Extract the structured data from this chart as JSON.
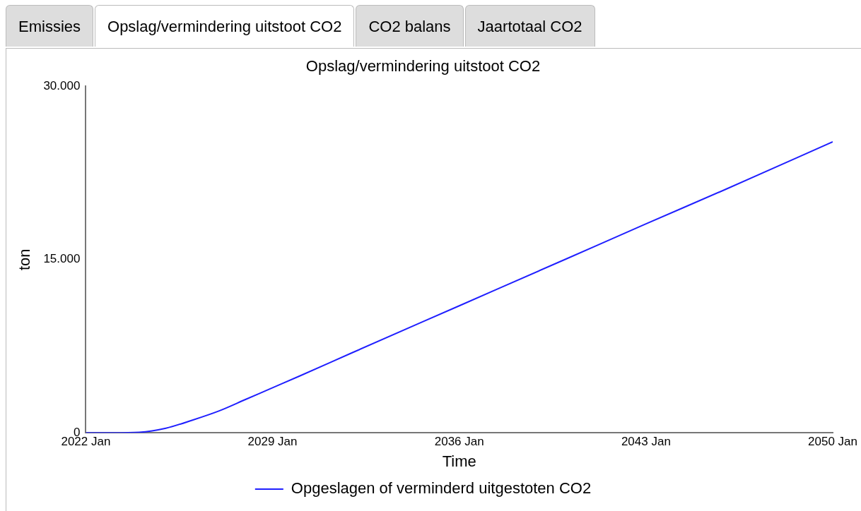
{
  "chart_data": {
    "type": "line",
    "title": "Opslag/vermindering uitstoot CO2",
    "xlabel": "Time",
    "ylabel": "ton",
    "annotations": [
      "Emissies",
      "Opslag/vermindering uitstoot CO2",
      "CO2 balans",
      "Jaartotaal CO2"
    ],
    "x": [
      "2022-01",
      "2023-01",
      "2024-01",
      "2025-01",
      "2026-01",
      "2027-01",
      "2028-01",
      "2029-01",
      "2030-01",
      "2032-01",
      "2036-01",
      "2040-01",
      "2043-01",
      "2046-01",
      "2050-01"
    ],
    "series": [
      {
        "name": "Opgeslagen of verminderd uitgestoten CO2",
        "color": "#1f1fff",
        "values": [
          0,
          0,
          50,
          400,
          1100,
          1900,
          2900,
          3900,
          4900,
          6950,
          11000,
          15050,
          18100,
          21100,
          25200
        ]
      }
    ],
    "xlim": [
      "2022-01",
      "2050-01"
    ],
    "xticks": [
      {
        "value": "2022-01",
        "label": "2022 Jan"
      },
      {
        "value": "2029-01",
        "label": "2029 Jan"
      },
      {
        "value": "2036-01",
        "label": "2036 Jan"
      },
      {
        "value": "2043-01",
        "label": "2043 Jan"
      },
      {
        "value": "2050-01",
        "label": "2050 Jan"
      }
    ],
    "ylim": [
      0,
      30000
    ],
    "yticks": [
      0,
      {
        "value": 15000,
        "label": "15.000"
      },
      {
        "value": 30000,
        "label": "30.000"
      }
    ],
    "grid": false,
    "legend": "bottom",
    "marker": "none",
    "line_style": "solid"
  }
}
